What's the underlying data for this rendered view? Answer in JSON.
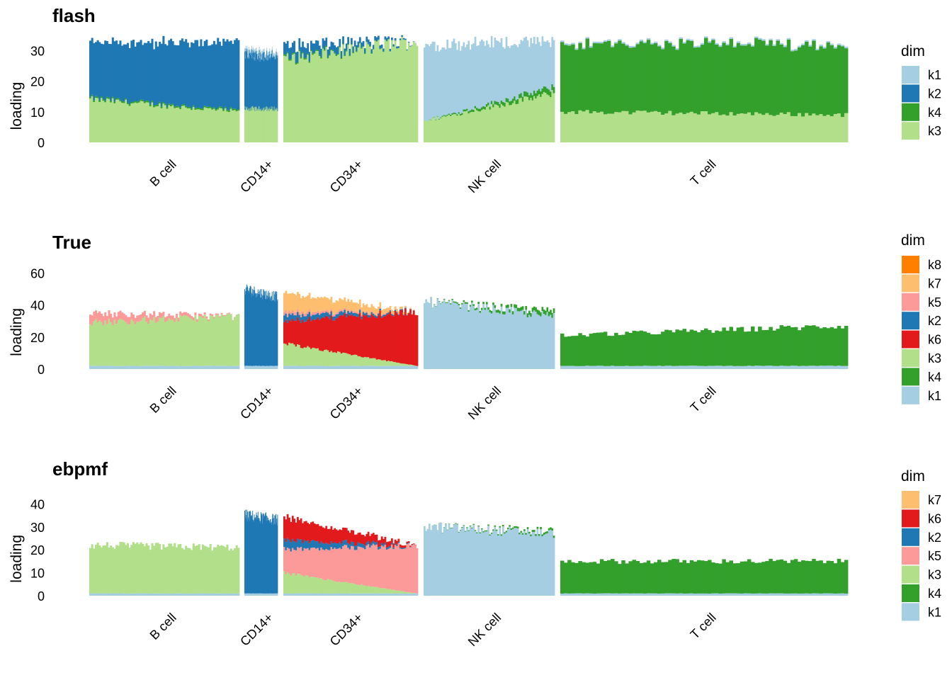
{
  "chart_data": [
    {
      "type": "bar",
      "subtype": "structure-plot (stacked, one bar per cell)",
      "title": "flash",
      "ylabel": "loading",
      "yticks": [
        0,
        10,
        20,
        30
      ],
      "ylim": [
        0,
        34
      ],
      "groups": [
        "B cell",
        "CD14+",
        "CD34+",
        "NK cell",
        "T cell"
      ],
      "legend_title": "dim",
      "legend": [
        {
          "name": "k1",
          "color": "#a6cee3"
        },
        {
          "name": "k2",
          "color": "#1f78b4"
        },
        {
          "name": "k4",
          "color": "#33a02c"
        },
        {
          "name": "k3",
          "color": "#b2df8a"
        }
      ],
      "stack_order": [
        "k3",
        "k4",
        "k2",
        "k1"
      ],
      "segments": {
        "B cell": {
          "k3": [
            14,
            10
          ],
          "k4": [
            0.5,
            0.5
          ],
          "k2": [
            18,
            22
          ],
          "k1": [
            0,
            0
          ]
        },
        "CD14+": {
          "k3": [
            11,
            11
          ],
          "k4": [
            0,
            0
          ],
          "k2": [
            18,
            17
          ],
          "k1": [
            1,
            1
          ]
        },
        "CD34+": {
          "k3": [
            27,
            33
          ],
          "k4": [
            0.5,
            0
          ],
          "k2": [
            4,
            0
          ],
          "k1": [
            0,
            0
          ]
        },
        "NK cell": {
          "k3": [
            7,
            16
          ],
          "k4": [
            0,
            2
          ],
          "k2": [
            0,
            0
          ],
          "k1": [
            25,
            15
          ]
        },
        "T cell": {
          "k3": [
            10,
            9
          ],
          "k4": [
            22,
            23
          ],
          "k2": [
            0,
            0
          ],
          "k1": [
            0.5,
            0.5
          ]
        }
      }
    },
    {
      "type": "bar",
      "subtype": "structure-plot (stacked, one bar per cell)",
      "title": "True",
      "ylabel": "loading",
      "yticks": [
        0,
        20,
        40,
        60
      ],
      "ylim": [
        0,
        66
      ],
      "groups": [
        "B cell",
        "CD14+",
        "CD34+",
        "NK cell",
        "T cell"
      ],
      "legend_title": "dim",
      "legend": [
        {
          "name": "k8",
          "color": "#ff7f00"
        },
        {
          "name": "k7",
          "color": "#fdbf6f"
        },
        {
          "name": "k5",
          "color": "#fb9a99"
        },
        {
          "name": "k2",
          "color": "#1f78b4"
        },
        {
          "name": "k6",
          "color": "#e31a1c"
        },
        {
          "name": "k3",
          "color": "#b2df8a"
        },
        {
          "name": "k4",
          "color": "#33a02c"
        },
        {
          "name": "k1",
          "color": "#a6cee3"
        }
      ],
      "stack_order": [
        "k1",
        "k4",
        "k3",
        "k6",
        "k2",
        "k5",
        "k7",
        "k8"
      ],
      "segments": {
        "B cell": {
          "k1": [
            2,
            2
          ],
          "k4": [
            0,
            0
          ],
          "k3": [
            27,
            31
          ],
          "k6": [
            0,
            0
          ],
          "k2": [
            0,
            0
          ],
          "k5": [
            6,
            0
          ],
          "k7": [
            0,
            0
          ],
          "k8": [
            0,
            0
          ]
        },
        "CD14+": {
          "k1": [
            2,
            2
          ],
          "k4": [
            0,
            0
          ],
          "k3": [
            0,
            0
          ],
          "k6": [
            0,
            0
          ],
          "k2": [
            48,
            43
          ],
          "k5": [
            0,
            0
          ],
          "k7": [
            0,
            0
          ],
          "k8": [
            0,
            0
          ]
        },
        "CD34+": {
          "k1": [
            2,
            2
          ],
          "k4": [
            0,
            0
          ],
          "k3": [
            14,
            0
          ],
          "k6": [
            14,
            34
          ],
          "k2": [
            4,
            0
          ],
          "k5": [
            2,
            0
          ],
          "k7": [
            12,
            0
          ],
          "k8": [
            0,
            0
          ]
        },
        "NK cell": {
          "k1": [
            42,
            33
          ],
          "k4": [
            0,
            3
          ],
          "k3": [
            0,
            0
          ],
          "k6": [
            0,
            0
          ],
          "k2": [
            0,
            0
          ],
          "k5": [
            0,
            0
          ],
          "k7": [
            0,
            0
          ],
          "k8": [
            0,
            0
          ]
        },
        "T cell": {
          "k1": [
            2,
            2
          ],
          "k4": [
            19,
            25
          ],
          "k3": [
            0,
            0
          ],
          "k6": [
            0,
            0
          ],
          "k2": [
            0,
            0
          ],
          "k5": [
            0,
            0
          ],
          "k7": [
            0,
            0
          ],
          "k8": [
            0,
            0
          ]
        }
      }
    },
    {
      "type": "bar",
      "subtype": "structure-plot (stacked, one bar per cell)",
      "title": "ebpmf",
      "ylabel": "loading",
      "yticks": [
        0,
        10,
        20,
        30,
        40
      ],
      "ylim": [
        0,
        46
      ],
      "groups": [
        "B cell",
        "CD14+",
        "CD34+",
        "NK cell",
        "T cell"
      ],
      "legend_title": "dim",
      "legend": [
        {
          "name": "k7",
          "color": "#fdbf6f"
        },
        {
          "name": "k6",
          "color": "#e31a1c"
        },
        {
          "name": "k2",
          "color": "#1f78b4"
        },
        {
          "name": "k5",
          "color": "#fb9a99"
        },
        {
          "name": "k3",
          "color": "#b2df8a"
        },
        {
          "name": "k4",
          "color": "#33a02c"
        },
        {
          "name": "k1",
          "color": "#a6cee3"
        }
      ],
      "stack_order": [
        "k1",
        "k4",
        "k3",
        "k5",
        "k2",
        "k6",
        "k7"
      ],
      "segments": {
        "B cell": {
          "k1": [
            1,
            1
          ],
          "k4": [
            0,
            0
          ],
          "k3": [
            21,
            20
          ],
          "k5": [
            0,
            0
          ],
          "k2": [
            0,
            0
          ],
          "k6": [
            0,
            0
          ],
          "k7": [
            0,
            0
          ]
        },
        "CD14+": {
          "k1": [
            1,
            1
          ],
          "k4": [
            0,
            0
          ],
          "k3": [
            0,
            0
          ],
          "k5": [
            0,
            0
          ],
          "k2": [
            34,
            32
          ],
          "k6": [
            0,
            0
          ],
          "k7": [
            0,
            0
          ]
        },
        "CD34+": {
          "k1": [
            1,
            1
          ],
          "k4": [
            0,
            0
          ],
          "k3": [
            9,
            0
          ],
          "k5": [
            10,
            21
          ],
          "k2": [
            4,
            0
          ],
          "k6": [
            10,
            0
          ],
          "k7": [
            0,
            0
          ]
        },
        "NK cell": {
          "k1": [
            30,
            27
          ],
          "k4": [
            0,
            1
          ],
          "k3": [
            0,
            0
          ],
          "k5": [
            0,
            0
          ],
          "k2": [
            0,
            0
          ],
          "k6": [
            0,
            0
          ],
          "k7": [
            0,
            0
          ]
        },
        "T cell": {
          "k1": [
            1,
            1
          ],
          "k4": [
            14,
            14
          ],
          "k3": [
            0,
            0
          ],
          "k5": [
            0,
            0
          ],
          "k2": [
            0,
            0
          ],
          "k6": [
            0,
            0
          ],
          "k7": [
            0,
            0
          ]
        }
      }
    }
  ]
}
